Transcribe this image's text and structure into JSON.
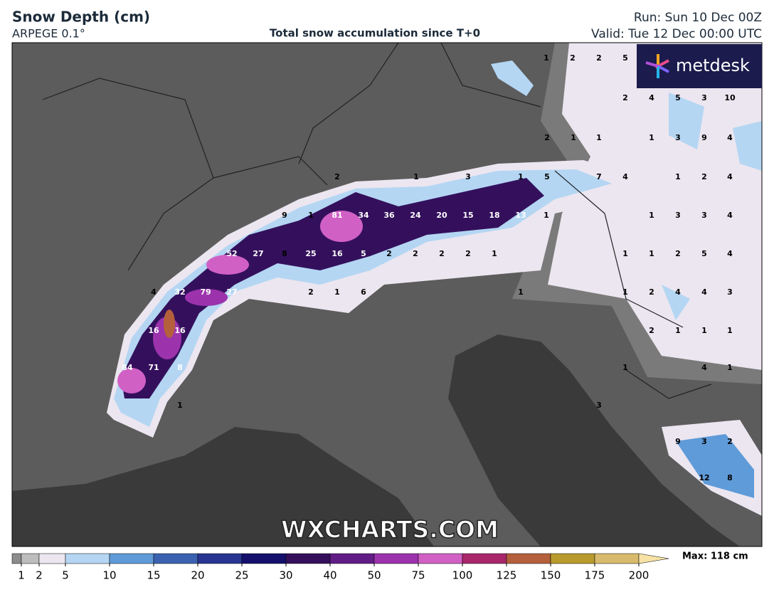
{
  "header": {
    "title": "Snow Depth (cm)",
    "model": "ARPEGE 0.1°",
    "subtitle": "Total snow accumulation since T+0",
    "run": "Run: Sun 10 Dec 00Z",
    "valid": "Valid: Tue 12 Dec 00:00 UTC"
  },
  "logo": "metdesk",
  "watermark": "WXCHARTS.COM",
  "map": {
    "point_labels": [
      1,
      2,
      2,
      5,
      2,
      4,
      5,
      3,
      10,
      2,
      1,
      1,
      1,
      3,
      9,
      4,
      2,
      1,
      3,
      1,
      5,
      7,
      4,
      1,
      2,
      4,
      9,
      1,
      81,
      34,
      36,
      24,
      20,
      15,
      18,
      13,
      1,
      1,
      3,
      3,
      4,
      52,
      27,
      8,
      25,
      16,
      5,
      2,
      2,
      2,
      2,
      1,
      1,
      1,
      2,
      5,
      4,
      4,
      32,
      79,
      27,
      2,
      1,
      6,
      1,
      1,
      2,
      4,
      4,
      3,
      16,
      16,
      2,
      1,
      1,
      1,
      84,
      71,
      8,
      1,
      4,
      1,
      1,
      3,
      9,
      3,
      2,
      12,
      8
    ]
  },
  "legend": {
    "ticks": [
      1,
      2,
      5,
      10,
      15,
      20,
      25,
      30,
      40,
      50,
      75,
      100,
      125,
      150,
      175,
      200
    ],
    "colors": [
      "#8c8c8c",
      "#bdbdbd",
      "#ece6f0",
      "#b4d6f3",
      "#5f9bd8",
      "#3a62b0",
      "#283592",
      "#14106c",
      "#34105c",
      "#621c86",
      "#9c33ad",
      "#d160c4",
      "#a8276a",
      "#b4603c",
      "#b89a2e",
      "#d8ba6c",
      "#f7e2a6"
    ],
    "max": "Max: 118 cm"
  }
}
